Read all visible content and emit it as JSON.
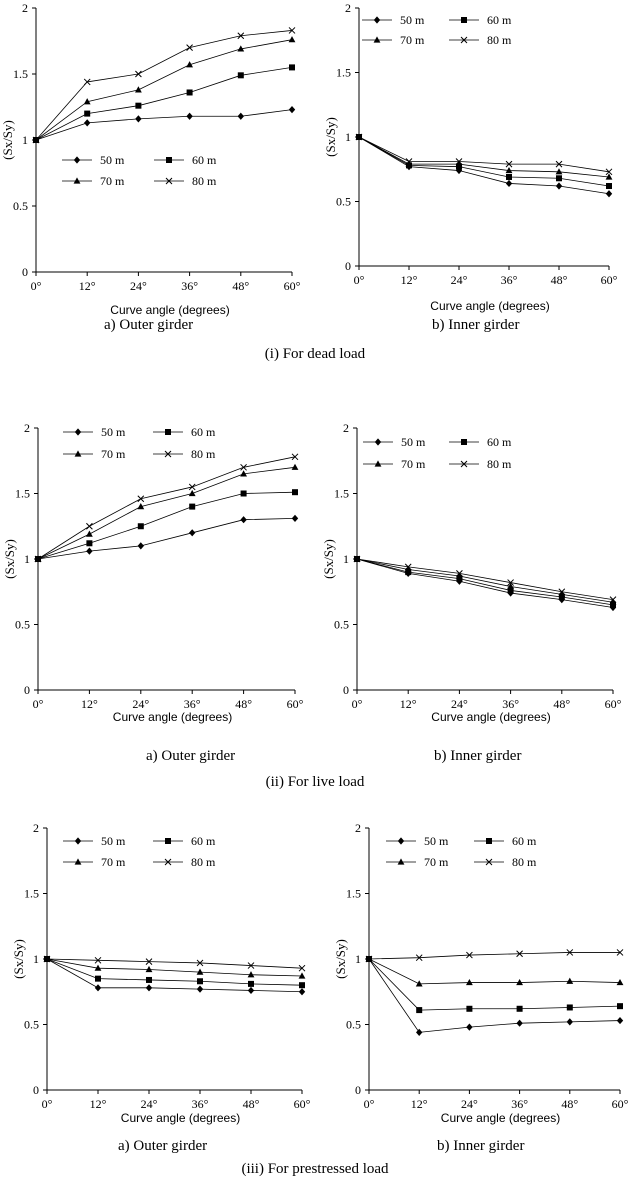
{
  "figure": {
    "group_captions": [
      "(i) For dead load",
      "(ii) For live load",
      "(iii) For prestressed load"
    ]
  },
  "chart_data": [
    {
      "type": "line",
      "group": "(i) For dead load",
      "caption": "a) Outer girder",
      "xlabel": "Curve angle (degrees)",
      "ylabel": "(Sx/Sy)",
      "x": [
        "0°",
        "12°",
        "24°",
        "36°",
        "48°",
        "60°"
      ],
      "ylim": [
        0,
        2
      ],
      "yticks": [
        "0",
        "0.5",
        "1",
        "1.5",
        "2"
      ],
      "legend_pos": "center-left",
      "series": [
        {
          "name": "50 m",
          "marker": "diamond",
          "values": [
            1.0,
            1.13,
            1.16,
            1.18,
            1.18,
            1.23
          ]
        },
        {
          "name": "60 m",
          "marker": "square",
          "values": [
            1.0,
            1.2,
            1.26,
            1.36,
            1.49,
            1.55
          ]
        },
        {
          "name": "70 m",
          "marker": "triangle",
          "values": [
            1.0,
            1.29,
            1.38,
            1.57,
            1.69,
            1.76
          ]
        },
        {
          "name": "80 m",
          "marker": "x",
          "values": [
            1.0,
            1.44,
            1.5,
            1.7,
            1.79,
            1.83
          ]
        }
      ]
    },
    {
      "type": "line",
      "group": "(i) For dead load",
      "caption": "b) Inner girder",
      "xlabel": "Curve angle (degrees)",
      "ylabel": "(Sx/Sy)",
      "x": [
        "0°",
        "12°",
        "24°",
        "36°",
        "48°",
        "60°"
      ],
      "ylim": [
        0,
        2
      ],
      "yticks": [
        "0",
        "0.5",
        "1",
        "1.5",
        "2"
      ],
      "legend_pos": "top",
      "series": [
        {
          "name": "50 m",
          "marker": "diamond",
          "values": [
            1.0,
            0.77,
            0.74,
            0.64,
            0.62,
            0.56
          ]
        },
        {
          "name": "60 m",
          "marker": "square",
          "values": [
            1.0,
            0.78,
            0.77,
            0.69,
            0.68,
            0.62
          ]
        },
        {
          "name": "70 m",
          "marker": "triangle",
          "values": [
            1.0,
            0.79,
            0.79,
            0.74,
            0.73,
            0.69
          ]
        },
        {
          "name": "80 m",
          "marker": "x",
          "values": [
            1.0,
            0.81,
            0.81,
            0.79,
            0.79,
            0.73
          ]
        }
      ]
    },
    {
      "type": "line",
      "group": "(ii) For live load",
      "caption": "a) Outer girder",
      "xlabel": "Curve angle (degrees)",
      "ylabel": "(Sx/Sy)",
      "x": [
        "0°",
        "12°",
        "24°",
        "36°",
        "48°",
        "60°"
      ],
      "ylim": [
        0,
        2
      ],
      "yticks": [
        "0",
        "0.5",
        "1",
        "1.5",
        "2"
      ],
      "legend_pos": "top",
      "series": [
        {
          "name": "50 m",
          "marker": "diamond",
          "values": [
            1.0,
            1.06,
            1.1,
            1.2,
            1.3,
            1.31
          ]
        },
        {
          "name": "60 m",
          "marker": "square",
          "values": [
            1.0,
            1.12,
            1.25,
            1.4,
            1.5,
            1.51
          ]
        },
        {
          "name": "70 m",
          "marker": "triangle",
          "values": [
            1.0,
            1.19,
            1.4,
            1.5,
            1.65,
            1.7
          ]
        },
        {
          "name": "80 m",
          "marker": "x",
          "values": [
            1.0,
            1.25,
            1.46,
            1.55,
            1.7,
            1.78
          ]
        }
      ]
    },
    {
      "type": "line",
      "group": "(ii) For live load",
      "caption": "b) Inner girder",
      "xlabel": "Curve angle (degrees)",
      "ylabel": "(Sx/Sy)",
      "x": [
        "0°",
        "12°",
        "24°",
        "36°",
        "48°",
        "60°"
      ],
      "ylim": [
        0,
        2
      ],
      "yticks": [
        "0",
        "0.5",
        "1",
        "1.5",
        "2"
      ],
      "legend_pos": "top",
      "series": [
        {
          "name": "50 m",
          "marker": "diamond",
          "values": [
            1.0,
            0.89,
            0.83,
            0.74,
            0.69,
            0.63
          ]
        },
        {
          "name": "60 m",
          "marker": "square",
          "values": [
            1.0,
            0.9,
            0.85,
            0.76,
            0.71,
            0.65
          ]
        },
        {
          "name": "70 m",
          "marker": "triangle",
          "values": [
            1.0,
            0.92,
            0.87,
            0.79,
            0.73,
            0.67
          ]
        },
        {
          "name": "80 m",
          "marker": "x",
          "values": [
            1.0,
            0.94,
            0.89,
            0.82,
            0.75,
            0.69
          ]
        }
      ]
    },
    {
      "type": "line",
      "group": "(iii) For prestressed load",
      "caption": "a) Outer girder",
      "xlabel": "Curve angle (degrees)",
      "ylabel": "(Sx/Sy)",
      "x": [
        "0°",
        "12°",
        "24°",
        "36°",
        "48°",
        "60°"
      ],
      "ylim": [
        0,
        2
      ],
      "yticks": [
        "0",
        "0.5",
        "1",
        "1.5",
        "2"
      ],
      "legend_pos": "top",
      "series": [
        {
          "name": "50 m",
          "marker": "diamond",
          "values": [
            1.0,
            0.78,
            0.78,
            0.77,
            0.76,
            0.75
          ]
        },
        {
          "name": "60 m",
          "marker": "square",
          "values": [
            1.0,
            0.85,
            0.84,
            0.83,
            0.81,
            0.8
          ]
        },
        {
          "name": "70 m",
          "marker": "triangle",
          "values": [
            1.0,
            0.93,
            0.92,
            0.9,
            0.88,
            0.87
          ]
        },
        {
          "name": "80 m",
          "marker": "x",
          "values": [
            1.0,
            0.99,
            0.98,
            0.97,
            0.95,
            0.93
          ]
        }
      ]
    },
    {
      "type": "line",
      "group": "(iii) For prestressed load",
      "caption": "b) Inner girder",
      "xlabel": "Curve angle (degrees)",
      "ylabel": "(Sx/Sy)",
      "x": [
        "0°",
        "12°",
        "24°",
        "36°",
        "48°",
        "60°"
      ],
      "ylim": [
        0,
        2
      ],
      "yticks": [
        "0",
        "0.5",
        "1",
        "1.5",
        "2"
      ],
      "legend_pos": "top",
      "series": [
        {
          "name": "50 m",
          "marker": "diamond",
          "values": [
            1.0,
            0.44,
            0.48,
            0.51,
            0.52,
            0.53
          ]
        },
        {
          "name": "60 m",
          "marker": "square",
          "values": [
            1.0,
            0.61,
            0.62,
            0.62,
            0.63,
            0.64
          ]
        },
        {
          "name": "70 m",
          "marker": "triangle",
          "values": [
            1.0,
            0.81,
            0.82,
            0.82,
            0.83,
            0.82
          ]
        },
        {
          "name": "80 m",
          "marker": "x",
          "values": [
            1.0,
            1.01,
            1.03,
            1.04,
            1.05,
            1.05
          ]
        }
      ]
    }
  ]
}
